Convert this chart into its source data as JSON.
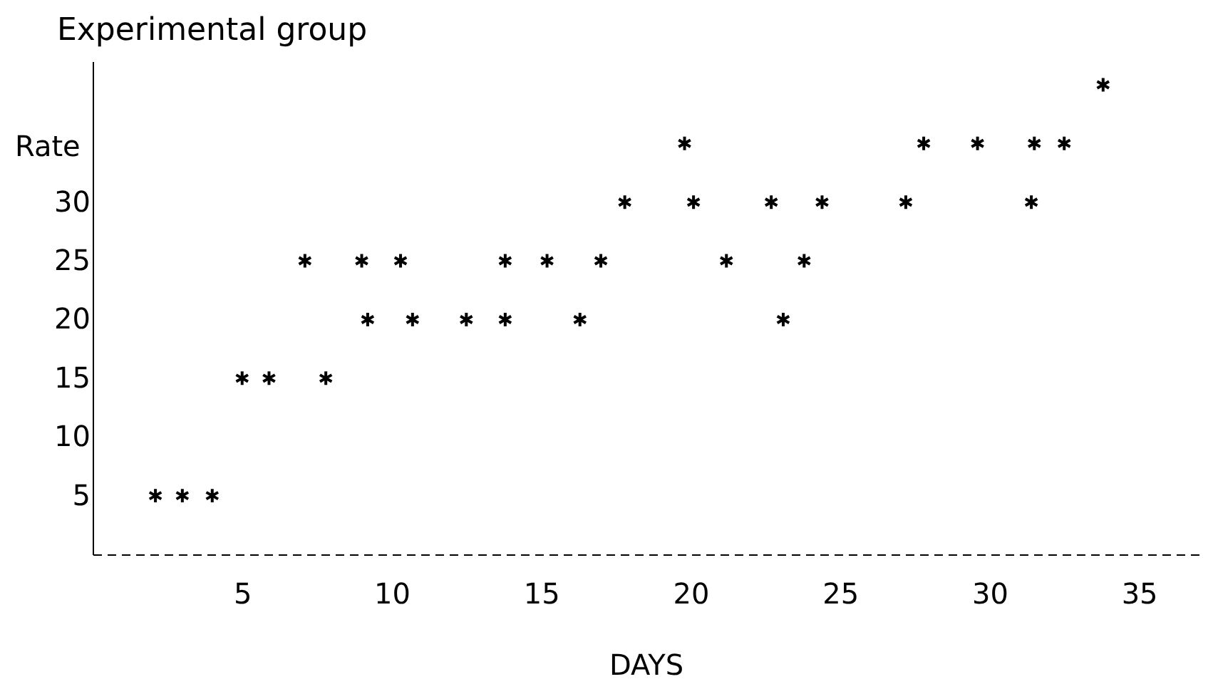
{
  "chart_data": {
    "type": "scatter",
    "title": "Experimental group",
    "xlabel": "DAYS",
    "ylabel": "Rate",
    "x": [
      2.1,
      3.0,
      4.0,
      5.0,
      5.9,
      7.8,
      9.2,
      10.7,
      12.5,
      13.8,
      16.3,
      23.1,
      7.1,
      9.0,
      10.3,
      13.8,
      15.2,
      17.0,
      21.2,
      23.8,
      17.8,
      20.1,
      22.7,
      24.4,
      27.2,
      31.4,
      19.8,
      27.8,
      29.6,
      31.5,
      32.5,
      33.8
    ],
    "series": [
      {
        "color": "#000000",
        "values": [
          5,
          5,
          5,
          15,
          15,
          15,
          20,
          20,
          20,
          20,
          20,
          20,
          25,
          25,
          25,
          25,
          25,
          25,
          25,
          25,
          30,
          30,
          30,
          30,
          30,
          30,
          35,
          35,
          35,
          35,
          35,
          40
        ]
      }
    ],
    "xlim": [
      0,
      37
    ],
    "ylim": [
      0,
      42
    ],
    "xticks": [
      5,
      10,
      15,
      20,
      25,
      30,
      35
    ],
    "yticks": [
      5,
      10,
      15,
      20,
      25,
      30
    ],
    "marker": "cross",
    "grid": false
  }
}
